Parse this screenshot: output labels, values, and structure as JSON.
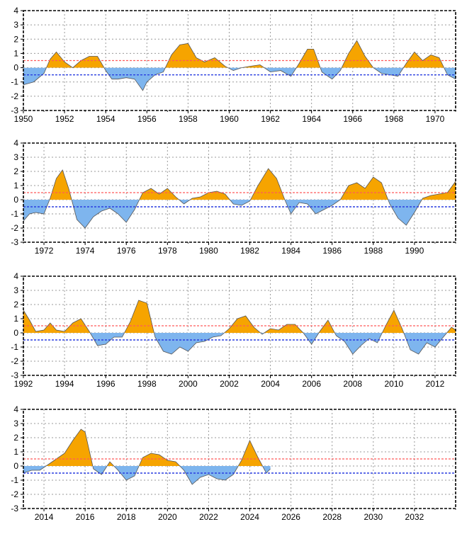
{
  "colors": {
    "warm": "#f6a400",
    "cool": "#7eb5ee",
    "warm_line": "#ff5a5a",
    "cool_line": "#2b3fe0",
    "grid": "#9a9a9a"
  },
  "chart_data": [
    {
      "type": "area",
      "xlim": [
        1950,
        1971
      ],
      "ylim": [
        -3,
        4
      ],
      "yticks": [
        -3,
        -2,
        -1,
        0,
        1,
        2,
        3,
        4
      ],
      "xticks": [
        1950,
        1952,
        1954,
        1956,
        1958,
        1960,
        1962,
        1964,
        1966,
        1968,
        1970
      ],
      "thresholds": [
        0.5,
        -0.5
      ],
      "grid": true,
      "x": [
        1950.0,
        1950.5,
        1951.0,
        1951.3,
        1951.6,
        1952.0,
        1952.4,
        1952.8,
        1953.2,
        1953.6,
        1954.0,
        1954.3,
        1954.6,
        1955.0,
        1955.4,
        1955.8,
        1956.0,
        1956.4,
        1956.8,
        1957.2,
        1957.6,
        1958.0,
        1958.4,
        1958.8,
        1959.3,
        1959.8,
        1960.2,
        1960.6,
        1961.0,
        1961.5,
        1962.0,
        1962.5,
        1963.0,
        1963.4,
        1963.8,
        1964.1,
        1964.5,
        1965.0,
        1965.4,
        1965.8,
        1966.2,
        1966.6,
        1967.0,
        1967.4,
        1967.8,
        1968.2,
        1968.6,
        1969.0,
        1969.4,
        1969.8,
        1970.2,
        1970.6,
        1971.0
      ],
      "y": [
        -1.2,
        -1.0,
        -0.4,
        0.6,
        1.1,
        0.4,
        0.0,
        0.5,
        0.8,
        0.8,
        -0.2,
        -0.8,
        -0.8,
        -0.7,
        -0.8,
        -1.6,
        -1.0,
        -0.5,
        -0.3,
        0.9,
        1.6,
        1.7,
        0.7,
        0.4,
        0.7,
        0.1,
        -0.2,
        0.0,
        0.1,
        0.2,
        -0.3,
        -0.2,
        -0.6,
        0.3,
        1.3,
        1.3,
        -0.3,
        -0.8,
        -0.2,
        1.0,
        1.9,
        0.8,
        0.0,
        -0.4,
        -0.5,
        -0.6,
        0.3,
        1.1,
        0.5,
        0.9,
        0.7,
        -0.5,
        -0.8
      ]
    },
    {
      "type": "area",
      "xlim": [
        1971,
        1992
      ],
      "ylim": [
        -3,
        4
      ],
      "yticks": [
        -3,
        -2,
        -1,
        0,
        1,
        2,
        3,
        4
      ],
      "xticks": [
        1972,
        1974,
        1976,
        1978,
        1980,
        1982,
        1984,
        1986,
        1988,
        1990
      ],
      "thresholds": [
        0.5,
        -0.5
      ],
      "grid": true,
      "x": [
        1971.0,
        1971.3,
        1971.6,
        1972.0,
        1972.3,
        1972.6,
        1972.9,
        1973.2,
        1973.6,
        1974.0,
        1974.4,
        1974.8,
        1975.2,
        1975.6,
        1976.0,
        1976.4,
        1976.8,
        1977.2,
        1977.6,
        1978.0,
        1978.4,
        1978.8,
        1979.2,
        1979.6,
        1980.0,
        1980.4,
        1980.8,
        1981.2,
        1981.6,
        1982.0,
        1982.4,
        1982.9,
        1983.3,
        1983.7,
        1984.0,
        1984.4,
        1984.8,
        1985.2,
        1985.6,
        1986.0,
        1986.4,
        1986.8,
        1987.2,
        1987.6,
        1988.0,
        1988.4,
        1988.8,
        1989.2,
        1989.6,
        1990.0,
        1990.4,
        1990.8,
        1991.2,
        1991.6,
        1992.0
      ],
      "y": [
        -1.5,
        -1.0,
        -0.9,
        -1.0,
        0.1,
        1.5,
        2.1,
        0.8,
        -1.4,
        -2.0,
        -1.2,
        -0.8,
        -0.6,
        -1.0,
        -1.6,
        -0.7,
        0.5,
        0.8,
        0.4,
        0.8,
        0.2,
        -0.3,
        0.1,
        0.2,
        0.5,
        0.6,
        0.4,
        -0.3,
        -0.4,
        -0.1,
        1.0,
        2.2,
        1.5,
        0.0,
        -1.0,
        -0.2,
        -0.3,
        -1.0,
        -0.7,
        -0.4,
        0.0,
        1.0,
        1.2,
        0.8,
        1.6,
        1.2,
        -0.3,
        -1.3,
        -1.8,
        -0.9,
        0.1,
        0.3,
        0.4,
        0.5,
        1.3
      ]
    },
    {
      "type": "area",
      "xlim": [
        1992,
        2013
      ],
      "ylim": [
        -3,
        4
      ],
      "yticks": [
        -3,
        -2,
        -1,
        0,
        1,
        2,
        3,
        4
      ],
      "xticks": [
        1992,
        1994,
        1996,
        1998,
        2000,
        2002,
        2004,
        2006,
        2008,
        2010,
        2012
      ],
      "thresholds": [
        0.5,
        -0.5
      ],
      "grid": true,
      "x": [
        1992.0,
        1992.3,
        1992.6,
        1993.0,
        1993.3,
        1993.6,
        1994.0,
        1994.4,
        1994.8,
        1995.2,
        1995.6,
        1996.0,
        1996.4,
        1996.8,
        1997.2,
        1997.6,
        1998.0,
        1998.4,
        1998.8,
        1999.2,
        1999.6,
        2000.0,
        2000.4,
        2000.8,
        2001.2,
        2001.6,
        2002.0,
        2002.4,
        2002.8,
        2003.2,
        2003.6,
        2004.0,
        2004.4,
        2004.8,
        2005.2,
        2005.6,
        2006.0,
        2006.4,
        2006.8,
        2007.2,
        2007.6,
        2008.0,
        2008.4,
        2008.8,
        2009.2,
        2009.6,
        2010.0,
        2010.4,
        2010.8,
        2011.2,
        2011.6,
        2012.0,
        2012.4,
        2012.8,
        2013.0
      ],
      "y": [
        1.6,
        0.9,
        0.1,
        0.2,
        0.7,
        0.2,
        0.1,
        0.7,
        1.0,
        0.1,
        -0.9,
        -0.8,
        -0.3,
        -0.3,
        0.8,
        2.3,
        2.1,
        -0.3,
        -1.3,
        -1.5,
        -1.0,
        -1.3,
        -0.7,
        -0.6,
        -0.3,
        -0.2,
        0.3,
        1.0,
        1.2,
        0.4,
        -0.1,
        0.3,
        0.2,
        0.6,
        0.6,
        0.0,
        -0.8,
        0.1,
        0.9,
        -0.2,
        -0.6,
        -1.5,
        -0.9,
        -0.4,
        -0.7,
        0.5,
        1.6,
        0.3,
        -1.2,
        -1.5,
        -0.7,
        -1.0,
        -0.3,
        0.4,
        0.2
      ]
    },
    {
      "type": "area",
      "xlim": [
        2013,
        2034
      ],
      "ylim": [
        -3,
        4
      ],
      "yticks": [
        -3,
        -2,
        -1,
        0,
        1,
        2,
        3,
        4
      ],
      "xticks": [
        2014,
        2016,
        2018,
        2020,
        2022,
        2024,
        2026,
        2028,
        2030,
        2032
      ],
      "thresholds": [
        0.5,
        -0.5
      ],
      "grid": true,
      "x": [
        2013.0,
        2013.4,
        2013.8,
        2014.2,
        2014.6,
        2015.0,
        2015.4,
        2015.8,
        2016.0,
        2016.4,
        2016.8,
        2017.2,
        2017.6,
        2018.0,
        2018.4,
        2018.8,
        2019.2,
        2019.6,
        2020.0,
        2020.4,
        2020.8,
        2021.2,
        2021.6,
        2022.0,
        2022.4,
        2022.8,
        2023.2,
        2023.6,
        2024.0,
        2024.4,
        2024.8,
        2025.0
      ],
      "y": [
        -0.5,
        -0.3,
        -0.3,
        0.1,
        0.5,
        0.9,
        1.8,
        2.6,
        2.4,
        -0.2,
        -0.6,
        0.3,
        -0.3,
        -1.0,
        -0.7,
        0.6,
        0.9,
        0.8,
        0.4,
        0.3,
        -0.3,
        -1.3,
        -0.8,
        -0.6,
        -0.9,
        -1.0,
        -0.6,
        0.4,
        1.8,
        0.6,
        -0.5,
        -0.2
      ]
    }
  ]
}
